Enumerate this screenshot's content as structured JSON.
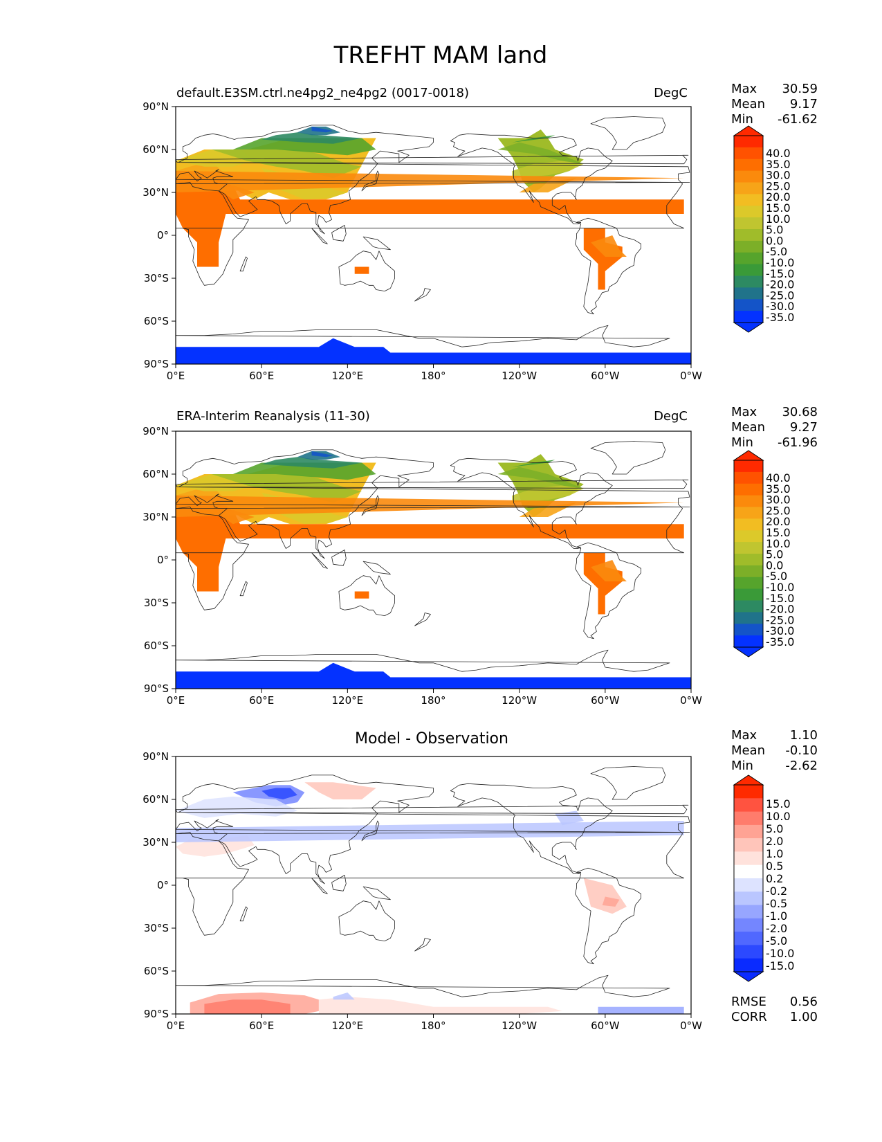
{
  "title": "TREFHT MAM land",
  "lat_ticks": [
    "90°N",
    "60°N",
    "30°N",
    "0°",
    "30°S",
    "60°S",
    "90°S"
  ],
  "lon_ticks": [
    "0°E",
    "60°E",
    "120°E",
    "180°",
    "120°W",
    "60°W",
    "0°W"
  ],
  "stat_labels": {
    "max": "Max",
    "mean": "Mean",
    "min": "Min",
    "rmse": "RMSE",
    "corr": "CORR"
  },
  "panels": [
    {
      "left_title": "default.E3SM.ctrl.ne4pg2_ne4pg2 (0017-0018)",
      "center_title": "",
      "units": "DegC",
      "stats": {
        "max": "30.59",
        "mean": "9.17",
        "min": "-61.62"
      },
      "colorbar": [
        "40.0",
        "35.0",
        "30.0",
        "25.0",
        "20.0",
        "15.0",
        "10.0",
        "5.0",
        "0.0",
        "-5.0",
        "-10.0",
        "-15.0",
        "-20.0",
        "-25.0",
        "-30.0",
        "-35.0"
      ]
    },
    {
      "left_title": "ERA-Interim Reanalysis (11-30)",
      "center_title": "",
      "units": "DegC",
      "stats": {
        "max": "30.68",
        "mean": "9.27",
        "min": "-61.96"
      },
      "colorbar": [
        "40.0",
        "35.0",
        "30.0",
        "25.0",
        "20.0",
        "15.0",
        "10.0",
        "5.0",
        "0.0",
        "-5.0",
        "-10.0",
        "-15.0",
        "-20.0",
        "-25.0",
        "-30.0",
        "-35.0"
      ]
    },
    {
      "left_title": "",
      "center_title": "Model - Observation",
      "units": "",
      "stats": {
        "max": "1.10",
        "mean": "-0.10",
        "min": "-2.62",
        "rmse": "0.56",
        "corr": "1.00"
      },
      "colorbar": [
        "15.0",
        "10.0",
        "5.0",
        "2.0",
        "1.0",
        "0.5",
        "0.2",
        "-0.2",
        "-0.5",
        "-1.0",
        "-2.0",
        "-5.0",
        "-10.0",
        "-15.0"
      ]
    }
  ],
  "colors": {
    "field": [
      "#ff2a00",
      "#ff5200",
      "#fe6e00",
      "#fb8a0c",
      "#f7a418",
      "#f2bd22",
      "#dcc92a",
      "#c0c530",
      "#a0bc2a",
      "#7caf28",
      "#56a42c",
      "#3a9a38",
      "#2d8a62",
      "#20738a",
      "#1454c8",
      "#0432ff"
    ],
    "diff": [
      "#ff2a00",
      "#ff5340",
      "#ff7c6c",
      "#ffa394",
      "#ffc5ba",
      "#ffe2dc",
      "#ffffff",
      "#dde3ff",
      "#bac6ff",
      "#97a6ff",
      "#7486ff",
      "#5068ff",
      "#2c49ff",
      "#0a2bff"
    ]
  }
}
